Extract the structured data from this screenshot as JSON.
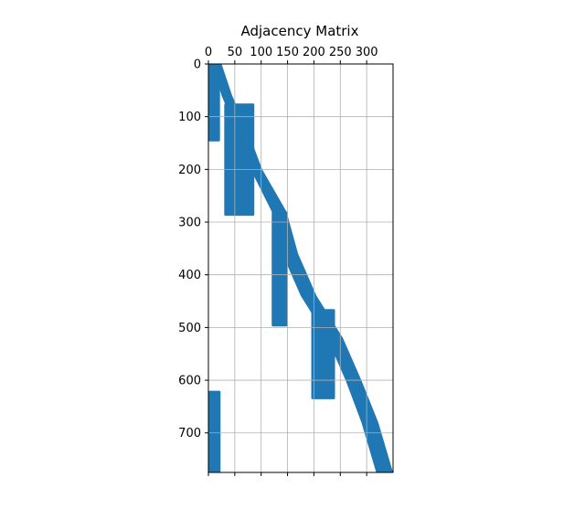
{
  "chart_data": {
    "type": "heatmap",
    "title": "Adjacency Matrix",
    "xlabel": "",
    "ylabel": "",
    "x_axis_position": "top",
    "xlim": [
      0,
      350
    ],
    "ylim": [
      775,
      0
    ],
    "x_ticks": [
      0,
      50,
      100,
      150,
      200,
      250,
      300
    ],
    "y_ticks": [
      0,
      100,
      200,
      300,
      400,
      500,
      600,
      700
    ],
    "grid": true,
    "mark_color": "#1f77b4",
    "grid_color": "#b0b0b0",
    "diagonal_band": [
      {
        "row": 0,
        "x_start": 7,
        "x_end": 25
      },
      {
        "row": 60,
        "x_start": 25,
        "x_end": 45
      },
      {
        "row": 120,
        "x_start": 50,
        "x_end": 72
      },
      {
        "row": 200,
        "x_start": 80,
        "x_end": 102
      },
      {
        "row": 280,
        "x_start": 120,
        "x_end": 148
      },
      {
        "row": 360,
        "x_start": 140,
        "x_end": 170
      },
      {
        "row": 440,
        "x_start": 175,
        "x_end": 205
      },
      {
        "row": 520,
        "x_start": 225,
        "x_end": 255
      },
      {
        "row": 600,
        "x_start": 260,
        "x_end": 290
      },
      {
        "row": 680,
        "x_start": 290,
        "x_end": 322
      },
      {
        "row": 775,
        "x_start": 318,
        "x_end": 350
      }
    ],
    "blocks": [
      {
        "x_start": 0,
        "x_end": 22,
        "y_start": 0,
        "y_end": 147
      },
      {
        "x_start": 30,
        "x_end": 87,
        "y_start": 75,
        "y_end": 288
      },
      {
        "x_start": 120,
        "x_end": 150,
        "y_start": 280,
        "y_end": 498
      },
      {
        "x_start": 195,
        "x_end": 240,
        "y_start": 465,
        "y_end": 636
      },
      {
        "x_start": 0,
        "x_end": 23,
        "y_start": 620,
        "y_end": 775
      }
    ]
  }
}
